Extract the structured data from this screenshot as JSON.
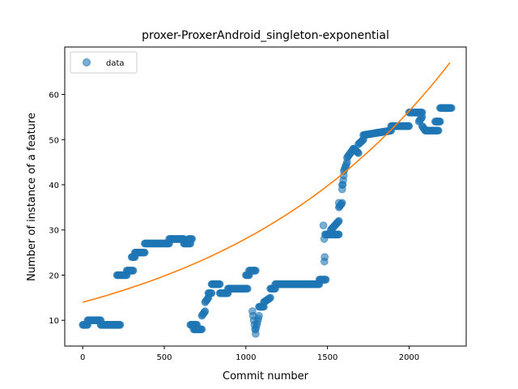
{
  "chart_data": {
    "type": "scatter",
    "title": "proxer-ProxerAndroid_singleton-exponential",
    "xlabel": "Commit number",
    "ylabel": "Number of instance of a feature",
    "xlim": [
      -110,
      2350
    ],
    "ylim": [
      4.3,
      70.5
    ],
    "xticks": [
      0,
      500,
      1000,
      1500,
      2000
    ],
    "yticks": [
      10,
      20,
      30,
      40,
      50,
      60
    ],
    "legend": {
      "placement": "top-left",
      "entries": [
        "data"
      ]
    },
    "grid": false,
    "colors": {
      "data": "#1f77b4",
      "fit": "#ff7f0e"
    },
    "series": [
      {
        "name": "data",
        "kind": "scatter",
        "segments": [
          [
            0,
            9,
            30,
            9
          ],
          [
            30,
            10,
            110,
            10
          ],
          [
            110,
            9,
            230,
            9
          ],
          [
            210,
            20,
            270,
            20
          ],
          [
            270,
            21,
            310,
            21
          ],
          [
            300,
            24,
            320,
            24
          ],
          [
            320,
            25,
            380,
            25
          ],
          [
            380,
            27,
            530,
            27
          ],
          [
            530,
            28,
            620,
            28
          ],
          [
            620,
            27,
            660,
            27
          ],
          [
            650,
            28,
            670,
            28
          ],
          [
            660,
            9,
            700,
            9
          ],
          [
            680,
            8,
            730,
            8
          ],
          [
            730,
            11,
            750,
            12
          ],
          [
            750,
            14,
            770,
            15
          ],
          [
            770,
            16,
            790,
            16
          ],
          [
            790,
            18,
            840,
            18
          ],
          [
            840,
            16,
            890,
            16
          ],
          [
            890,
            17,
            1010,
            17
          ],
          [
            1000,
            20,
            1020,
            20
          ],
          [
            1020,
            21,
            1060,
            21
          ],
          [
            1040,
            12,
            1060,
            7
          ],
          [
            1060,
            8,
            1080,
            11
          ],
          [
            1080,
            13,
            1110,
            13
          ],
          [
            1110,
            14,
            1150,
            15
          ],
          [
            1150,
            17,
            1180,
            17
          ],
          [
            1180,
            18,
            1450,
            18
          ],
          [
            1450,
            19,
            1490,
            19
          ],
          [
            1490,
            29,
            1570,
            29
          ],
          [
            1520,
            30,
            1570,
            32
          ],
          [
            1570,
            35,
            1590,
            36
          ],
          [
            1590,
            39,
            1600,
            42
          ],
          [
            1600,
            43,
            1620,
            45
          ],
          [
            1620,
            46,
            1660,
            48
          ],
          [
            1660,
            48,
            1690,
            47
          ],
          [
            1690,
            49,
            1720,
            50
          ],
          [
            1720,
            51,
            1890,
            52
          ],
          [
            1890,
            53,
            2000,
            53
          ],
          [
            2000,
            56,
            2080,
            56
          ],
          [
            2060,
            54,
            2080,
            55
          ],
          [
            2080,
            53,
            2100,
            52
          ],
          [
            2100,
            52,
            2180,
            52
          ],
          [
            2160,
            54,
            2190,
            54
          ],
          [
            2190,
            57,
            2260,
            57
          ]
        ],
        "points": [
          [
            1475,
            31
          ],
          [
            1480,
            28
          ],
          [
            1485,
            29
          ],
          [
            1483,
            24
          ],
          [
            1481,
            23
          ],
          [
            1590,
            40
          ],
          [
            1570,
            36
          ]
        ]
      },
      {
        "name": "",
        "kind": "line",
        "function": "exponential",
        "a": 14.0,
        "b": 0.000696,
        "x": [
          0,
          2250
        ]
      }
    ]
  }
}
